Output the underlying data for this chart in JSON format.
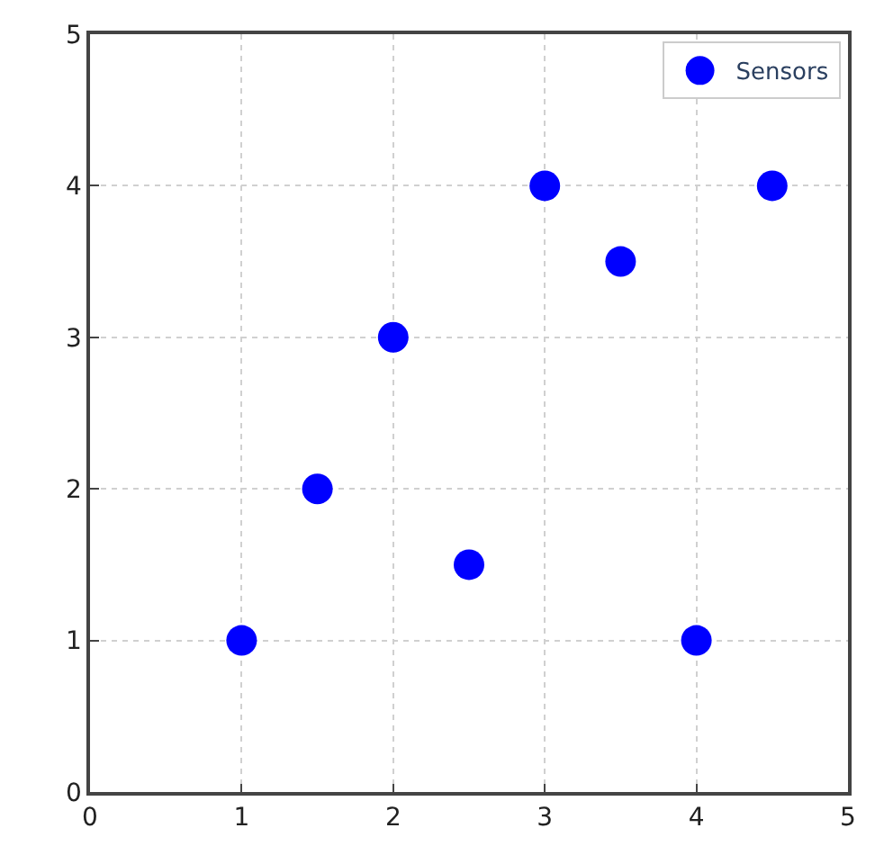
{
  "chart_data": {
    "type": "scatter",
    "x": [
      1,
      1.5,
      2,
      2.5,
      3,
      3.5,
      4,
      4.5
    ],
    "series": [
      {
        "name": "Sensors",
        "color": "#0000ff",
        "values": [
          1,
          2,
          3,
          1.5,
          4,
          3.5,
          1,
          4
        ]
      }
    ],
    "xlim": [
      0,
      5
    ],
    "ylim": [
      0,
      5
    ],
    "xticks": [
      0,
      1,
      2,
      3,
      4,
      5
    ],
    "yticks": [
      0,
      1,
      2,
      3,
      4,
      5
    ],
    "grid": true,
    "legend": "top right",
    "marker": "circle"
  }
}
